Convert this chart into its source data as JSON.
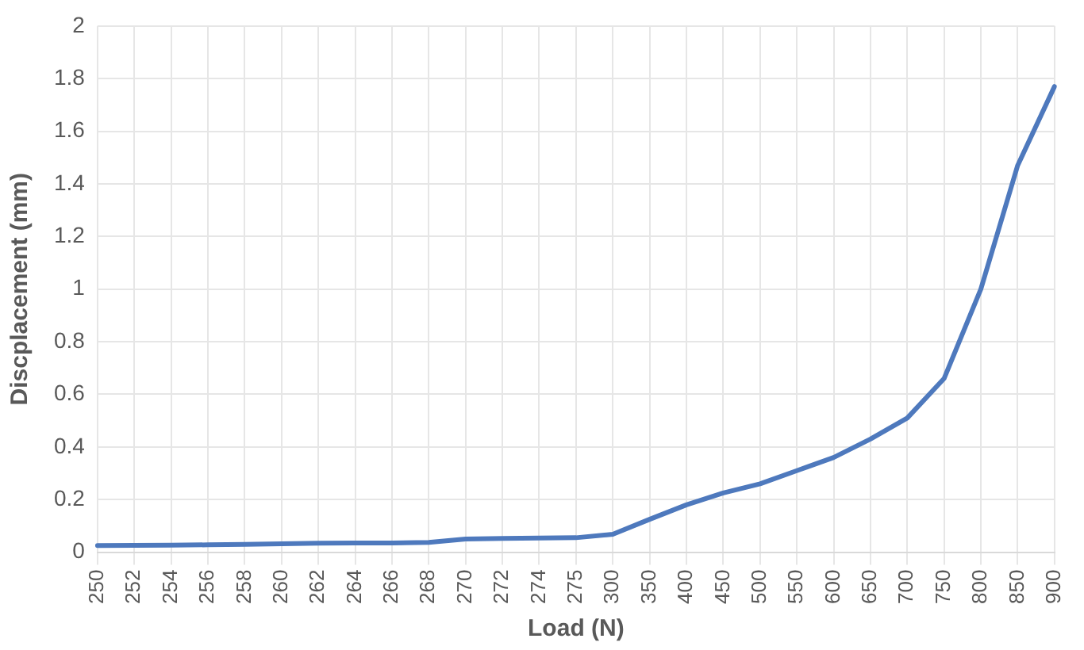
{
  "chart_data": {
    "type": "line",
    "xlabel": "Load (N)",
    "ylabel": "Discplacement (mm)",
    "categories": [
      "250",
      "252",
      "254",
      "256",
      "258",
      "260",
      "262",
      "264",
      "266",
      "268",
      "270",
      "272",
      "274",
      "275",
      "300",
      "350",
      "400",
      "450",
      "500",
      "550",
      "600",
      "650",
      "700",
      "750",
      "800",
      "850",
      "900"
    ],
    "series": [
      {
        "color": "#4e79bd",
        "values": [
          0.025,
          0.026,
          0.027,
          0.028,
          0.03,
          0.032,
          0.034,
          0.035,
          0.035,
          0.037,
          0.05,
          0.052,
          0.054,
          0.055,
          0.068,
          0.125,
          0.18,
          0.225,
          0.26,
          0.31,
          0.36,
          0.43,
          0.51,
          0.66,
          1.0,
          1.47,
          1.77
        ]
      }
    ],
    "ylim": [
      0,
      2
    ],
    "yticks": [
      0,
      0.2,
      0.4,
      0.6,
      0.8,
      1,
      1.2,
      1.4,
      1.6,
      1.8,
      2
    ],
    "grid": true,
    "legend": false,
    "marker": "none",
    "line_style": "solid"
  }
}
